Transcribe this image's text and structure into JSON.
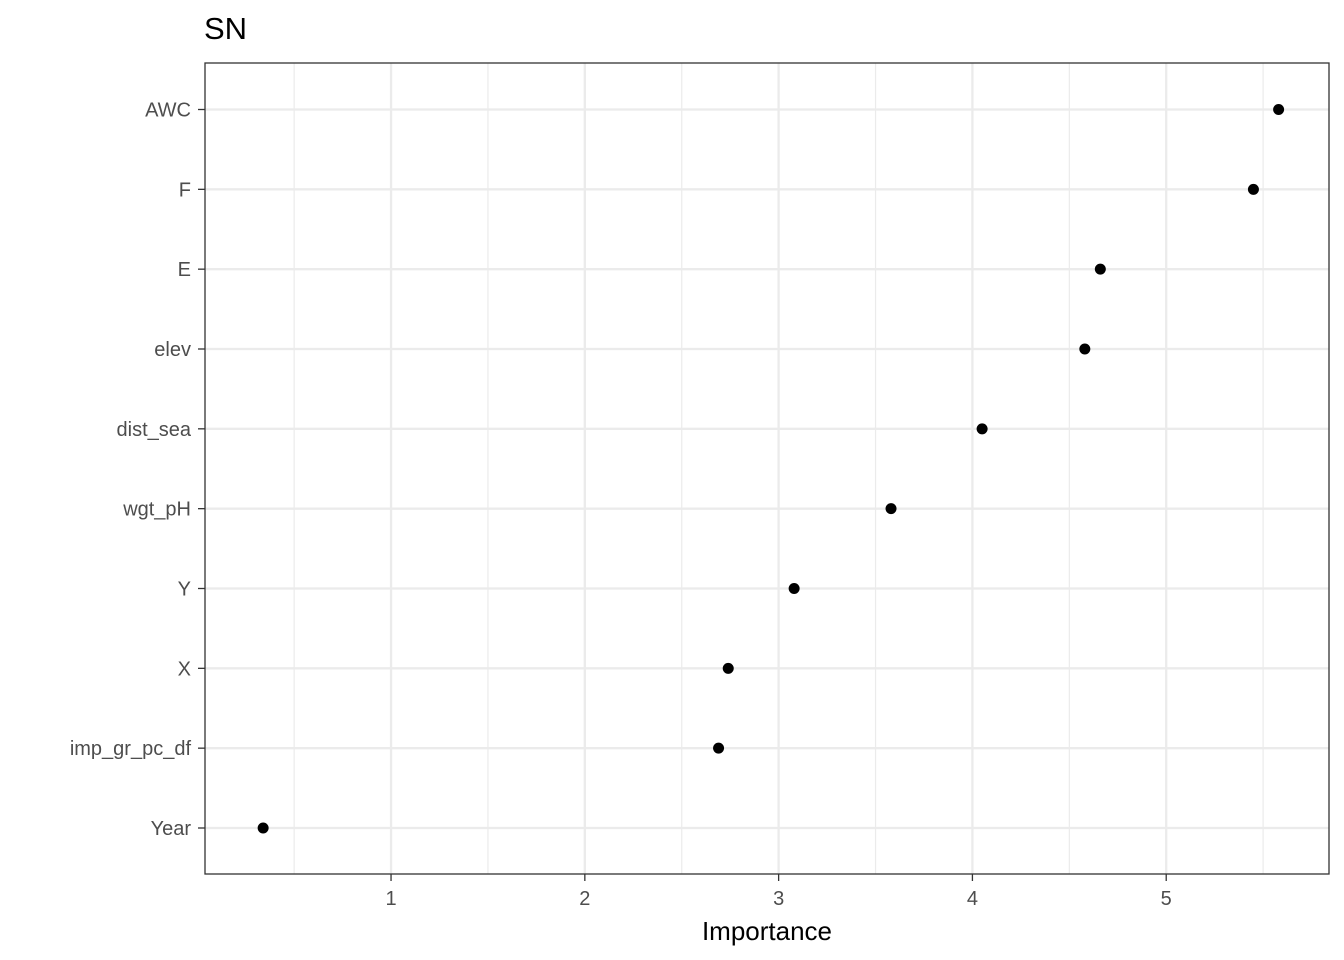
{
  "chart_data": {
    "type": "scatter",
    "title": "SN",
    "xlabel": "Importance",
    "ylabel": "",
    "xlim": [
      0.04,
      5.84
    ],
    "xticks": [
      1,
      2,
      3,
      4,
      5
    ],
    "xticklabels": [
      "1",
      "2",
      "3",
      "4",
      "5"
    ],
    "grid": true,
    "categories": [
      "Year",
      "imp_gr_pc_df",
      "X",
      "Y",
      "wgt_pH",
      "dist_sea",
      "elev",
      "E",
      "F",
      "AWC"
    ],
    "values": [
      0.34,
      2.69,
      2.74,
      3.08,
      3.58,
      4.05,
      4.58,
      4.66,
      5.45,
      5.58
    ],
    "point_color": "#000000",
    "grid_color": "#ebebeb"
  }
}
